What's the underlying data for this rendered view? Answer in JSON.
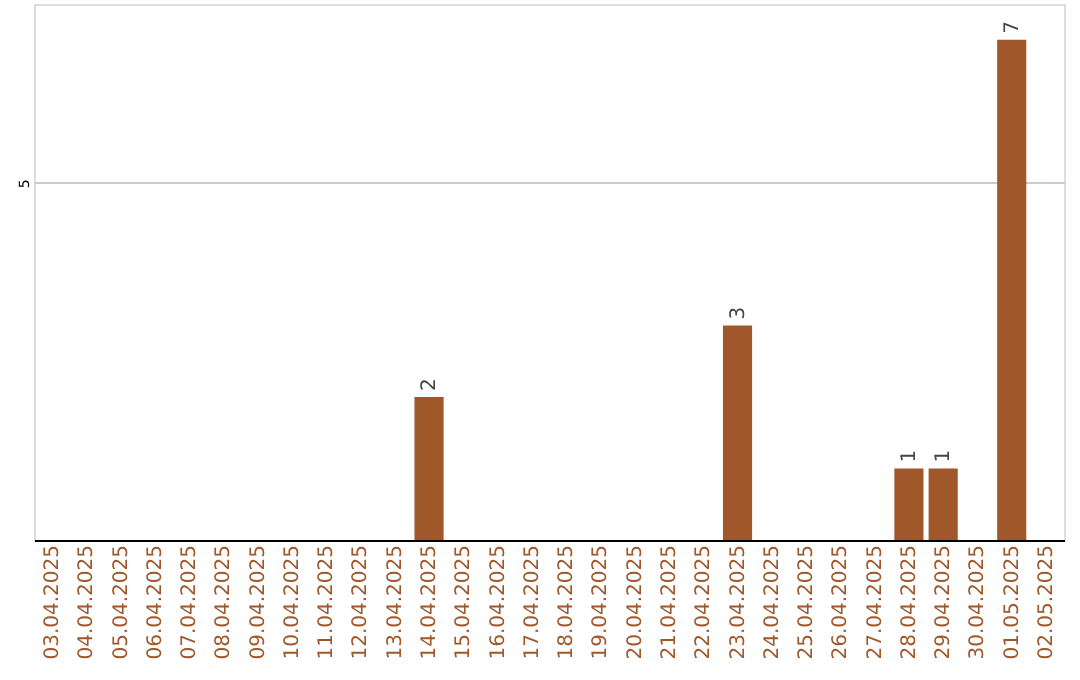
{
  "chart_data": {
    "type": "bar",
    "categories": [
      "03.04.2025",
      "04.04.2025",
      "05.04.2025",
      "06.04.2025",
      "07.04.2025",
      "08.04.2025",
      "09.04.2025",
      "10.04.2025",
      "11.04.2025",
      "12.04.2025",
      "13.04.2025",
      "14.04.2025",
      "15.04.2025",
      "16.04.2025",
      "17.04.2025",
      "18.04.2025",
      "19.04.2025",
      "20.04.2025",
      "21.04.2025",
      "22.04.2025",
      "23.04.2025",
      "24.04.2025",
      "25.04.2025",
      "26.04.2025",
      "27.04.2025",
      "28.04.2025",
      "29.04.2025",
      "30.04.2025",
      "01.05.2025",
      "02.05.2025"
    ],
    "values": [
      null,
      null,
      null,
      null,
      null,
      null,
      null,
      null,
      null,
      null,
      null,
      2,
      null,
      null,
      null,
      null,
      null,
      null,
      null,
      null,
      3,
      null,
      null,
      null,
      null,
      1,
      1,
      null,
      7,
      null
    ],
    "color": "#a0572a",
    "ylim": [
      0,
      7.5
    ],
    "yticks": [
      5
    ],
    "grid": "y",
    "data_labels": true
  }
}
